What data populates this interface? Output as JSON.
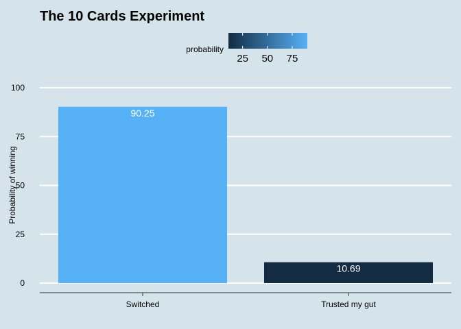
{
  "chart_data": {
    "type": "bar",
    "title": "The 10 Cards Experiment",
    "xlabel": "",
    "ylabel": "Probability of winning",
    "categories": [
      "Switched",
      "Trusted my gut"
    ],
    "values": [
      90.25,
      10.69
    ],
    "data_labels": [
      "90.25",
      "10.69"
    ],
    "ylim": [
      0,
      100
    ],
    "yticks": [
      0,
      25,
      50,
      75,
      100
    ],
    "ytick_labels": [
      "0",
      "25",
      "50",
      "75",
      "100"
    ],
    "grid": true,
    "legend": {
      "title": "probability",
      "placement": "top",
      "type": "colorbar",
      "range": [
        10.69,
        90.25
      ],
      "ticks": [
        25,
        50,
        75
      ],
      "tick_labels": [
        "25",
        "50",
        "75"
      ],
      "color_low": "#132b43",
      "color_high": "#56b1f7"
    }
  }
}
